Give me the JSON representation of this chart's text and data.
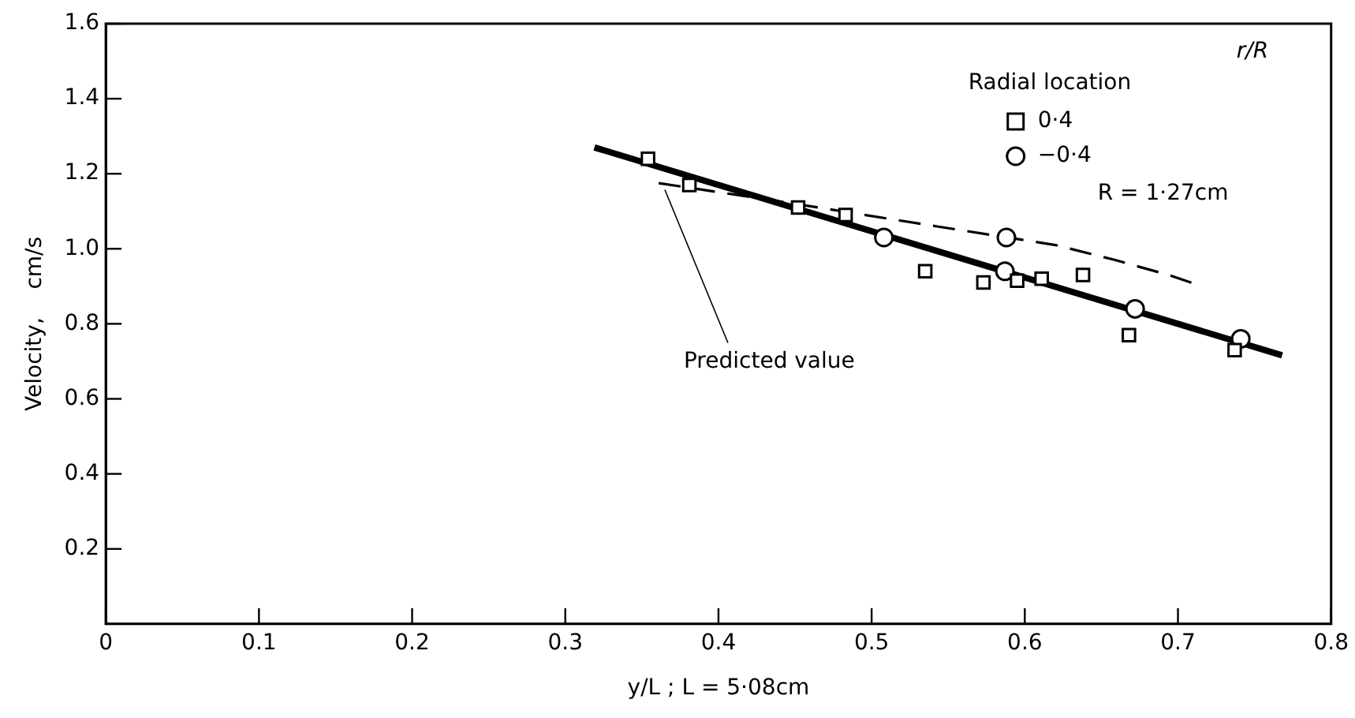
{
  "chart_data": {
    "type": "scatter",
    "xlabel": "y/L ; L = 5·08cm",
    "ylabel": "Velocity,    cm/s",
    "legend_title": "Radial location",
    "annotations": [
      "r/R",
      "R = 1·27cm",
      {
        "text": "Predicted value",
        "x": 0.365,
        "y": 1.17
      }
    ],
    "xlim": [
      0,
      0.8
    ],
    "ylim": [
      0,
      1.6
    ],
    "xticks": [
      0,
      0.1,
      0.2,
      0.3,
      0.4,
      0.5,
      0.6,
      0.7,
      0.8
    ],
    "yticks": [
      0.2,
      0.4,
      0.6,
      0.8,
      {
        "value": 1.0,
        "label": "1.0"
      },
      1.2,
      1.4,
      1.6
    ],
    "grid": false,
    "legend": "top right",
    "series": [
      {
        "name": "0·4",
        "marker": "square",
        "color": "#000000",
        "x": [
          0.354,
          0.381,
          0.452,
          0.483,
          0.535,
          0.573,
          0.595,
          0.611,
          0.638,
          0.668,
          0.737
        ],
        "values": [
          1.24,
          1.17,
          1.11,
          1.09,
          0.94,
          0.91,
          0.915,
          0.92,
          0.93,
          0.77,
          0.73
        ]
      },
      {
        "name": "−0·4",
        "marker": "circle",
        "color": "#000000",
        "x": [
          0.508,
          0.587,
          0.588,
          0.672,
          0.741
        ],
        "values": [
          1.03,
          0.94,
          1.03,
          0.84,
          0.76
        ]
      },
      {
        "type": "line",
        "line_style": "solid",
        "color": "#000000",
        "x": [
          0.319,
          0.768
        ],
        "values": [
          1.27,
          0.716
        ]
      },
      {
        "type": "line",
        "line_style": "dashed",
        "color": "#000000",
        "x": [
          0.361,
          0.45,
          0.542,
          0.62,
          0.659,
          0.694,
          0.712
        ],
        "values": [
          1.175,
          1.12,
          1.06,
          1.01,
          0.97,
          0.93,
          0.905
        ]
      }
    ]
  }
}
